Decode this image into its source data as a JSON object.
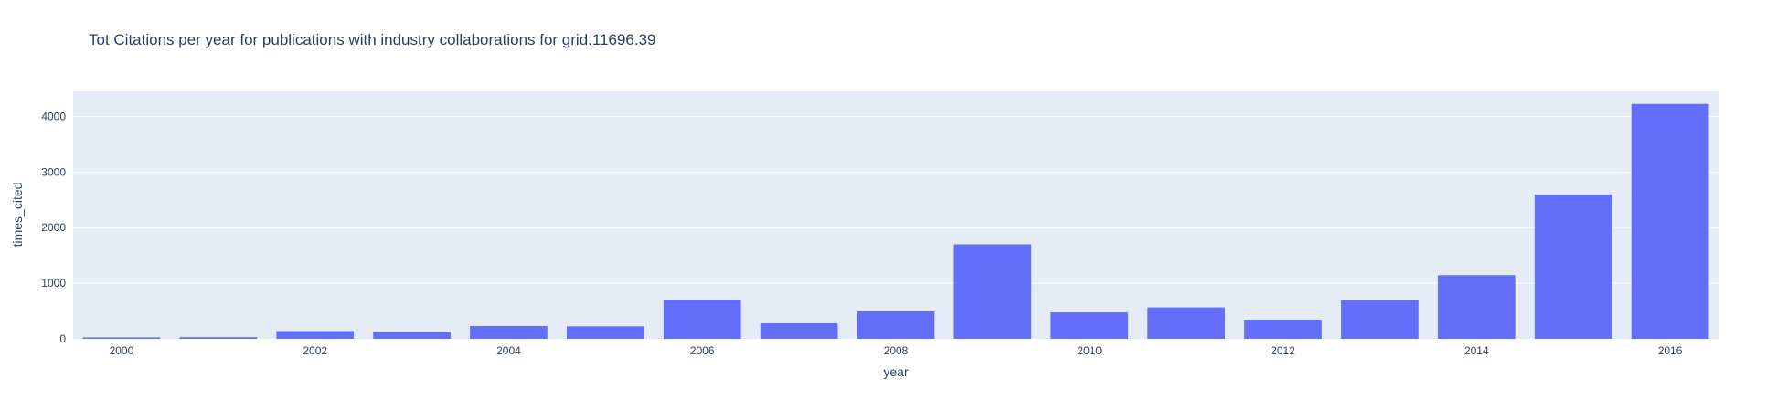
{
  "chart_data": {
    "type": "bar",
    "title": "Tot Citations per year for publications with industry collaborations for grid.11696.39",
    "xlabel": "year",
    "ylabel": "times_cited",
    "categories": [
      2000,
      2001,
      2002,
      2003,
      2004,
      2005,
      2006,
      2007,
      2008,
      2009,
      2010,
      2011,
      2012,
      2013,
      2014,
      2015,
      2016
    ],
    "values": [
      25,
      30,
      140,
      120,
      230,
      225,
      705,
      280,
      495,
      1700,
      475,
      565,
      345,
      695,
      1145,
      2595,
      4225
    ],
    "x_tick_labels": [
      "2000",
      "2002",
      "2004",
      "2006",
      "2008",
      "2010",
      "2012",
      "2014",
      "2016"
    ],
    "y_tick_labels": [
      "0",
      "1000",
      "2000",
      "3000",
      "4000"
    ],
    "ylim": [
      0,
      4450
    ],
    "grid": true,
    "bar_color": "#636efa",
    "plot_background": "#e5ecf6",
    "grid_color": "#ffffff",
    "text_color": "#2a3f5f"
  }
}
